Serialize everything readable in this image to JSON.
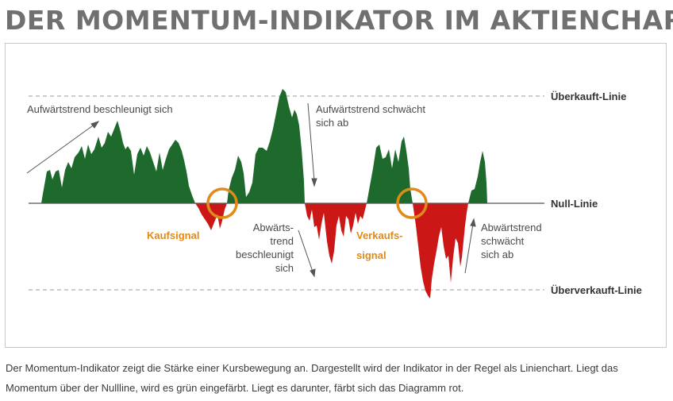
{
  "title": "DER MOMENTUM-INDIKATOR IM AKTIENCHART",
  "lines": {
    "overbought": "Überkauft-Linie",
    "zero": "Null-Linie",
    "oversold": "Überverkauft-Linie"
  },
  "annotations": {
    "up_accel": "Aufwärtstrend beschleunigt sich",
    "up_weak_1": "Aufwärtstrend schwächt",
    "up_weak_2": "sich ab",
    "down_accel_1": "Abwärts-",
    "down_accel_2": "trend",
    "down_accel_3": "beschleunigt",
    "down_accel_4": "sich",
    "down_weak_1": "Abwärtstrend",
    "down_weak_2": "schwächt",
    "down_weak_3": "sich ab"
  },
  "signals": {
    "buy": "Kaufsignal",
    "sell_1": "Verkaufs-",
    "sell_2": "signal"
  },
  "caption": "Der Momentum-Indikator zeigt die Stärke einer Kursbewegung an. Dargestellt wird der Indikator in der Regel als Linienchart. Liegt das Momentum über der Nullline, wird es grün eingefärbt. Liegt es darunter, färbt sich das Diagramm rot.",
  "colors": {
    "positive": "#1e6a2c",
    "negative": "#cc1717",
    "signal": "#e08a1a",
    "title": "#707070"
  }
}
